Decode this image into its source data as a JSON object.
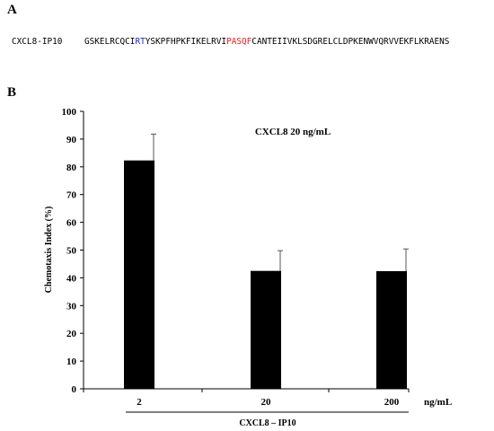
{
  "panel_a": {
    "label": "A",
    "sequence_name": "CXCL8-IP10",
    "sequence_parts": [
      {
        "text": "GSKELRCQCI",
        "color": "#000000"
      },
      {
        "text": "RT",
        "color": "#1f2fcf"
      },
      {
        "text": "YSKPFHPKFIKELRVI",
        "color": "#000000"
      },
      {
        "text": "PASQF",
        "color": "#e0201e"
      },
      {
        "text": "CANTEIIVKLSDGRELCLDPKENWVQRVVEKFLKRAENS",
        "color": "#000000"
      }
    ]
  },
  "panel_b": {
    "label": "B"
  },
  "chart_data": {
    "type": "bar",
    "categories": [
      "2",
      "20",
      "200"
    ],
    "values": [
      82.3,
      42.5,
      42.4
    ],
    "errors": [
      9.5,
      7.3,
      8.0
    ],
    "bar_color": "#000000",
    "ylabel": "Chemotaxis Index (%)",
    "xlabel": "CXCL8 – IP10",
    "x_unit": "ng/mL",
    "annotation": "CXCL8  20 ng/mL",
    "ylim": [
      0,
      100
    ],
    "yticks": [
      0,
      10,
      20,
      30,
      40,
      50,
      60,
      70,
      80,
      90,
      100
    ],
    "grid": false
  }
}
